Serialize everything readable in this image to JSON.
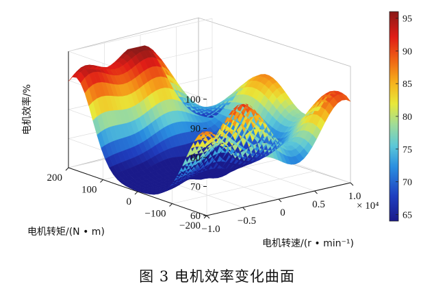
{
  "caption": "图 3    电机效率变化曲面",
  "chart_data": {
    "type": "surface3d",
    "title": "",
    "x_axis": {
      "label": "电机转速/(r • min⁻¹)",
      "tick_labels": [
        "−1.0",
        "−0.5",
        "0",
        "0.5",
        "1.0"
      ],
      "range": [
        -10000,
        10000
      ],
      "multiplier": "× 10⁴"
    },
    "y_axis": {
      "label": "电机转矩/(N • m)",
      "tick_labels": [
        "200",
        "100",
        "0",
        "−100",
        "−200"
      ],
      "range": [
        -200,
        200
      ]
    },
    "z_axis": {
      "label": "电机效率/%",
      "tick_labels": [
        "100",
        "90",
        "80",
        "70",
        "60"
      ],
      "range": [
        60,
        100
      ]
    },
    "colorbar": {
      "tick_labels": [
        "95",
        "90",
        "85",
        "80",
        "75",
        "70",
        "65"
      ],
      "range": [
        64,
        96
      ],
      "colormap": "jet"
    },
    "surface": {
      "description_of_shape_points": [
        {
          "speed": -10000,
          "torque": 200,
          "efficiency": 93
        },
        {
          "speed": 0,
          "torque": 200,
          "efficiency": 95
        },
        {
          "speed": 10000,
          "torque": 200,
          "efficiency": 87
        },
        {
          "speed": -10000,
          "torque": 0,
          "efficiency": 60
        },
        {
          "speed": 0,
          "torque": 0,
          "efficiency": 60
        },
        {
          "speed": 10000,
          "torque": 0,
          "efficiency": 86
        },
        {
          "speed": -10000,
          "torque": -200,
          "efficiency": 90
        },
        {
          "speed": 0,
          "torque": -200,
          "efficiency": 93
        },
        {
          "speed": 10000,
          "torque": -200,
          "efficiency": 89
        }
      ]
    },
    "grid": true,
    "legend": "none"
  }
}
